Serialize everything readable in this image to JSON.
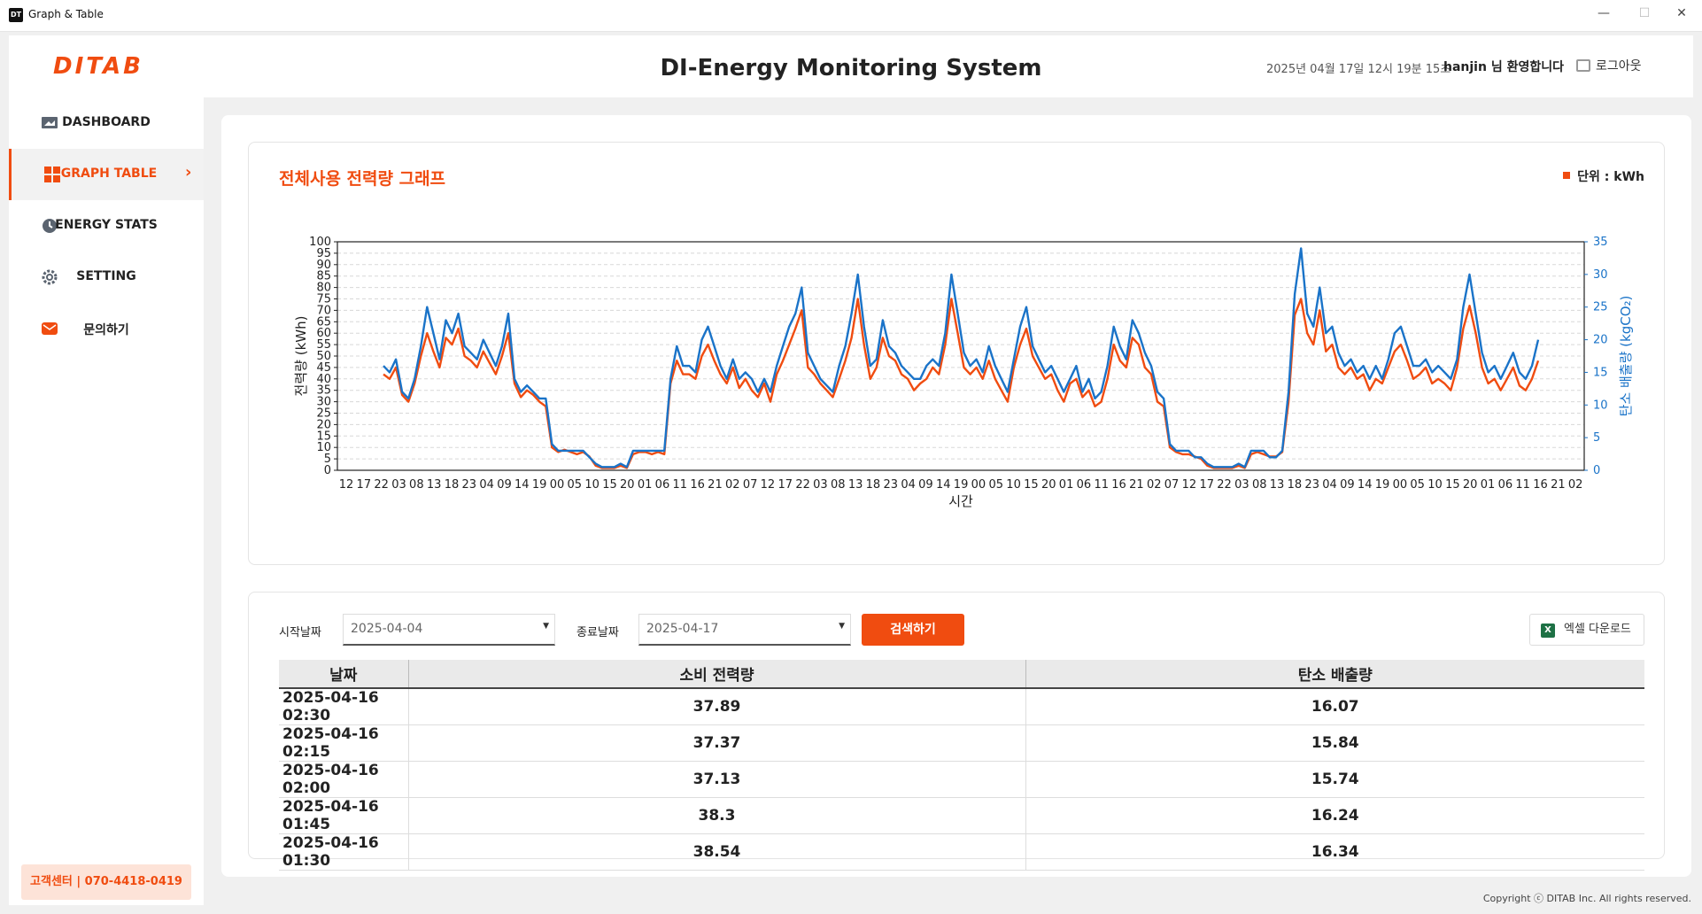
{
  "window": {
    "icon_text": "DT",
    "title": "Graph & Table",
    "minimize": "—",
    "maximize": "☐",
    "close": "✕"
  },
  "header": {
    "logo": "DITAB",
    "title": "DI-Energy Monitoring System",
    "datetime": "2025년 04월 17일 12시 19분 15초",
    "welcome": "hanjin 님 환영합니다",
    "logout": "로그아웃"
  },
  "sidebar": {
    "items": [
      {
        "label": "DASHBOARD",
        "icon": "monitor-icon"
      },
      {
        "label": "GRAPH TABLE",
        "icon": "grid-icon",
        "active": true
      },
      {
        "label": "ENERGY STATS",
        "icon": "clock-icon"
      },
      {
        "label": "SETTING",
        "icon": "gear-icon"
      },
      {
        "label": "문의하기",
        "icon": "mail-icon"
      }
    ],
    "support": "고객센터 | 070-4418-0419"
  },
  "chart_card": {
    "title": "전체사용 전력량 그래프",
    "unit": "단위 : kWh"
  },
  "chart_data": {
    "type": "line",
    "xlabel": "시간",
    "ylabel": "전력량 (kWh)",
    "y2label": "탄소 배출량 (kgCO₂)",
    "ylim": [
      0,
      100
    ],
    "y2lim": [
      0,
      35
    ],
    "yticks": [
      0,
      5,
      10,
      15,
      20,
      25,
      30,
      35,
      40,
      45,
      50,
      55,
      60,
      65,
      70,
      75,
      80,
      85,
      90,
      95,
      100
    ],
    "y2ticks": [
      0,
      5,
      10,
      15,
      20,
      25,
      30,
      35
    ],
    "xticks": [
      "12",
      "17",
      "22",
      "03",
      "08",
      "13",
      "18",
      "23",
      "04",
      "09",
      "14",
      "19",
      "00",
      "05",
      "10",
      "15",
      "20",
      "01",
      "06",
      "11",
      "16",
      "21",
      "02",
      "07",
      "12",
      "17",
      "22",
      "03",
      "08",
      "13",
      "18",
      "23",
      "04",
      "09",
      "14",
      "19",
      "00",
      "05",
      "10",
      "15",
      "20",
      "01",
      "06",
      "11",
      "16",
      "21",
      "02",
      "07",
      "12",
      "17",
      "22",
      "03",
      "08",
      "13",
      "18",
      "23",
      "04",
      "09",
      "14",
      "19",
      "00",
      "05",
      "10",
      "15",
      "20",
      "01",
      "06",
      "11",
      "16",
      "21",
      "02"
    ],
    "grid": "horizontal-dashed",
    "colors": {
      "power": "#f04c10",
      "carbon": "#1a73c8"
    },
    "series": [
      {
        "axis": "left",
        "values": [
          42,
          40,
          45,
          33,
          30,
          38,
          50,
          60,
          52,
          45,
          58,
          55,
          62,
          50,
          48,
          45,
          52,
          47,
          42,
          50,
          60,
          38,
          32,
          35,
          33,
          30,
          28,
          10,
          8,
          9,
          8,
          7,
          8,
          6,
          2,
          1,
          1,
          1,
          2,
          1,
          7,
          8,
          8,
          7,
          8,
          7,
          38,
          48,
          42,
          42,
          40,
          50,
          55,
          48,
          42,
          38,
          45,
          36,
          40,
          35,
          32,
          38,
          30,
          42,
          48,
          55,
          62,
          70,
          45,
          42,
          38,
          35,
          32,
          40,
          48,
          58,
          75,
          55,
          40,
          45,
          58,
          50,
          48,
          42,
          40,
          35,
          38,
          40,
          45,
          42,
          55,
          75,
          60,
          45,
          42,
          45,
          40,
          48,
          40,
          35,
          30,
          45,
          55,
          62,
          50,
          45,
          40,
          42,
          35,
          30,
          38,
          40,
          32,
          35,
          28,
          30,
          40,
          55,
          48,
          45,
          58,
          55,
          45,
          42,
          30,
          28,
          10,
          8,
          7,
          7,
          6,
          5,
          2,
          1,
          1,
          1,
          1,
          2,
          1,
          7,
          8,
          7,
          6,
          6,
          8,
          30,
          68,
          75,
          60,
          55,
          70,
          52,
          55,
          45,
          42,
          45,
          40,
          42,
          35,
          40,
          38,
          45,
          52,
          55,
          48,
          40,
          42,
          45,
          38,
          40,
          38,
          35,
          45,
          62,
          72,
          60,
          45,
          38,
          40,
          35,
          40,
          45,
          37,
          35,
          40,
          48
        ],
        "name": ""
      },
      {
        "axis": "right",
        "values": [
          16,
          15,
          17,
          12,
          11,
          14,
          19,
          25,
          21,
          17,
          23,
          21,
          24,
          19,
          18,
          17,
          20,
          18,
          16,
          19,
          24,
          14,
          12,
          13,
          12,
          11,
          11,
          4,
          3,
          3,
          3,
          3,
          3,
          2,
          1,
          0.5,
          0.5,
          0.5,
          1,
          0.5,
          3,
          3,
          3,
          3,
          3,
          3,
          14,
          19,
          16,
          16,
          15,
          20,
          22,
          19,
          16,
          14,
          17,
          14,
          15,
          14,
          12,
          14,
          12,
          16,
          19,
          22,
          24,
          28,
          18,
          16,
          14,
          13,
          12,
          16,
          19,
          24,
          30,
          22,
          16,
          17,
          23,
          19,
          18,
          16,
          15,
          14,
          14,
          16,
          17,
          16,
          21,
          30,
          24,
          18,
          16,
          17,
          15,
          19,
          16,
          14,
          12,
          17,
          22,
          25,
          19,
          17,
          15,
          16,
          14,
          12,
          14,
          16,
          12,
          14,
          11,
          12,
          16,
          22,
          19,
          17,
          23,
          21,
          18,
          16,
          12,
          11,
          4,
          3,
          3,
          3,
          2,
          2,
          1,
          0.5,
          0.5,
          0.5,
          0.5,
          1,
          0.5,
          3,
          3,
          3,
          2,
          2,
          3,
          12,
          27,
          34,
          24,
          22,
          28,
          21,
          22,
          18,
          16,
          17,
          15,
          16,
          14,
          16,
          14,
          17,
          21,
          22,
          19,
          16,
          16,
          17,
          15,
          16,
          15,
          14,
          17,
          25,
          30,
          24,
          18,
          15,
          16,
          14,
          16,
          18,
          15,
          14,
          16,
          20
        ],
        "name": ""
      }
    ]
  },
  "filters": {
    "start_label": "시작날짜",
    "start_value": "2025-04-04",
    "end_label": "종료날짜",
    "end_value": "2025-04-17",
    "search": "검색하기",
    "excel": "엑셀 다운로드"
  },
  "table": {
    "headers": [
      "날짜",
      "소비 전력량",
      "탄소 배출량"
    ],
    "rows": [
      [
        "2025-04-16 02:30",
        "37.89",
        "16.07"
      ],
      [
        "2025-04-16 02:15",
        "37.37",
        "15.84"
      ],
      [
        "2025-04-16 02:00",
        "37.13",
        "15.74"
      ],
      [
        "2025-04-16 01:45",
        "38.3",
        "16.24"
      ],
      [
        "2025-04-16 01:30",
        "38.54",
        "16.34"
      ]
    ]
  },
  "footer": {
    "copyright": "Copyright ⓒ DITAB Inc. All rights reserved."
  }
}
